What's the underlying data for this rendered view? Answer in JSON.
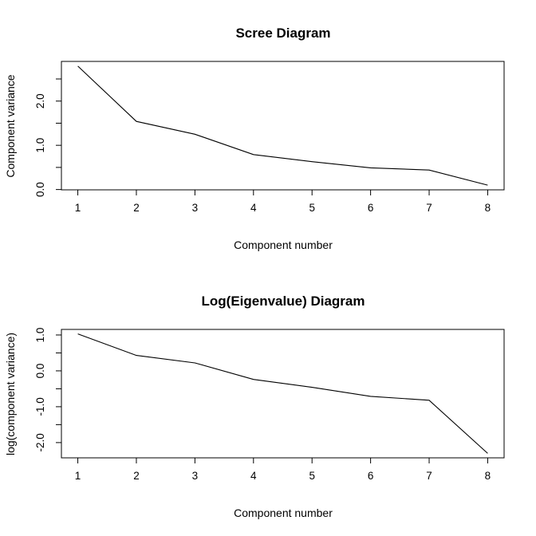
{
  "chart_data": [
    {
      "type": "line",
      "title": "Scree Diagram",
      "xlabel": "Component number",
      "ylabel": "Component variance",
      "x": [
        1,
        2,
        3,
        4,
        5,
        6,
        7,
        8
      ],
      "y": [
        2.79,
        1.54,
        1.25,
        0.79,
        0.63,
        0.49,
        0.44,
        0.1
      ],
      "xticks": [
        1,
        2,
        3,
        4,
        5,
        6,
        7,
        8
      ],
      "xtick_labels": [
        "1",
        "2",
        "3",
        "4",
        "5",
        "6",
        "7",
        "8"
      ],
      "yticks": [
        0.0,
        0.5,
        1.0,
        1.5,
        2.0,
        2.5
      ],
      "ytick_labels": [
        "0.0",
        "",
        "1.0",
        "",
        "2.0",
        ""
      ],
      "xlim": [
        0.72,
        8.28
      ],
      "ylim": [
        -0.007,
        2.897
      ],
      "grid": false
    },
    {
      "type": "line",
      "title": "Log(Eigenvalue) Diagram",
      "xlabel": "Component number",
      "ylabel": "log(component variance)",
      "x": [
        1,
        2,
        3,
        4,
        5,
        6,
        7,
        8
      ],
      "y": [
        1.03,
        0.43,
        0.22,
        -0.24,
        -0.46,
        -0.71,
        -0.82,
        -2.3
      ],
      "xticks": [
        1,
        2,
        3,
        4,
        5,
        6,
        7,
        8
      ],
      "xtick_labels": [
        "1",
        "2",
        "3",
        "4",
        "5",
        "6",
        "7",
        "8"
      ],
      "yticks": [
        1.0,
        0.5,
        0.0,
        -0.5,
        -1.0,
        -1.5,
        -2.0
      ],
      "ytick_labels": [
        "1.0",
        "",
        "0.0",
        "",
        "-1.0",
        "",
        "-2.0"
      ],
      "xlim": [
        0.72,
        8.28
      ],
      "ylim": [
        -2.425,
        1.155
      ],
      "grid": false
    }
  ]
}
